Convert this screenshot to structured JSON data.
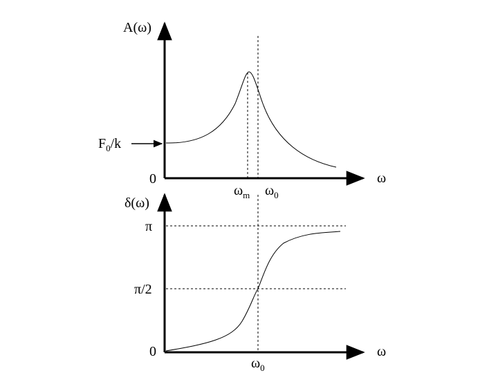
{
  "upper_plot": {
    "y_axis_label": {
      "main": "A(ω)"
    },
    "x_axis_label": "ω",
    "origin_label": "0",
    "arrow_label": {
      "main": "F",
      "sub": "0",
      "tail": "/k"
    },
    "x_ticks": [
      {
        "main": "ω",
        "sub": "m"
      },
      {
        "main": "ω",
        "sub": "0"
      }
    ]
  },
  "lower_plot": {
    "y_axis_label": "δ(ω)",
    "x_axis_label": "ω",
    "origin_label": "0",
    "y_ticks": [
      "π",
      "π/2"
    ],
    "x_ticks": [
      {
        "main": "ω",
        "sub": "0"
      }
    ]
  }
}
